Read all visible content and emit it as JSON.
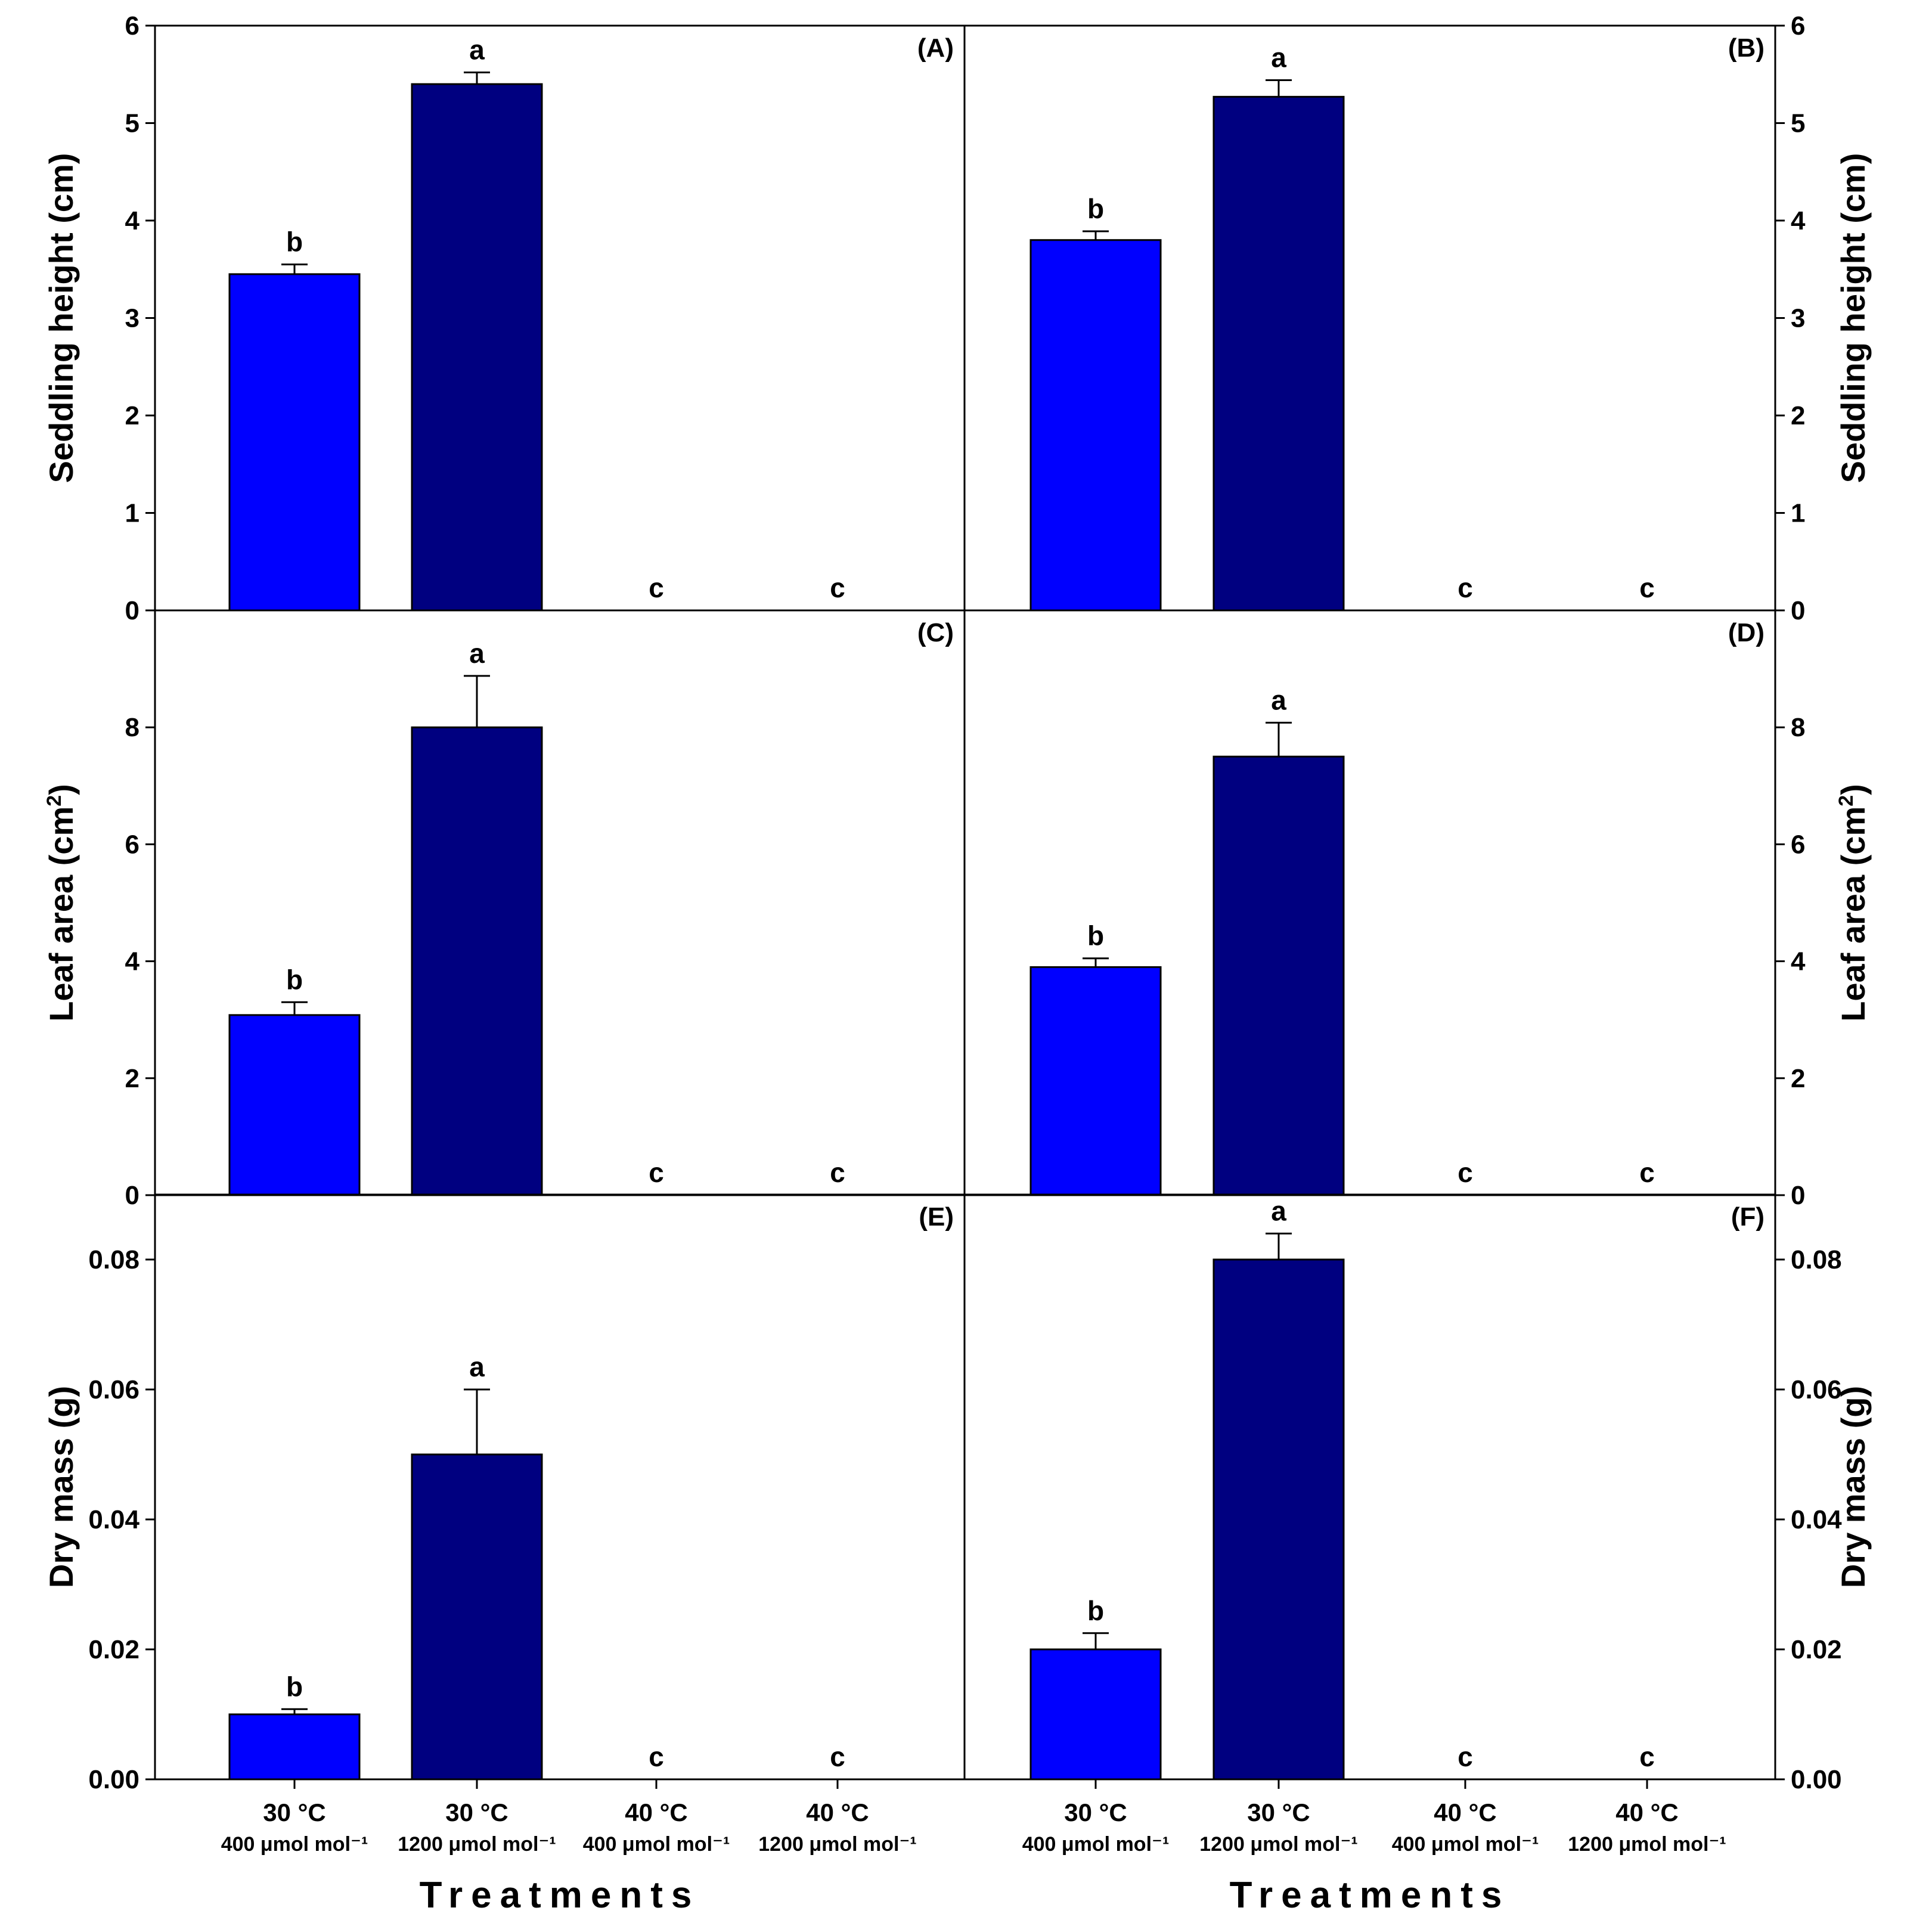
{
  "chart_data": {
    "type": "bar",
    "categories": [
      {
        "line1": "30 °C",
        "line2": "400 μmol mol⁻¹"
      },
      {
        "line1": "30 °C",
        "line2": "1200 μmol mol⁻¹"
      },
      {
        "line1": "40 °C",
        "line2": "400 μmol mol⁻¹"
      },
      {
        "line1": "40 °C",
        "line2": "1200 μmol mol⁻¹"
      }
    ],
    "xlabel": "Treatments",
    "bar_colors": [
      "#0000ff",
      "#000080",
      "#000080",
      "#000080"
    ],
    "panels": [
      {
        "id": "A",
        "label": "(A)",
        "ylabel": "Seddling height (cm)",
        "ylabel_sup": "",
        "ylabel_tail": "",
        "ylim": [
          0,
          6
        ],
        "ticks": [
          "0",
          "1",
          "2",
          "3",
          "4",
          "5",
          "6"
        ],
        "tick_values": [
          0,
          1,
          2,
          3,
          4,
          5,
          6
        ],
        "values": [
          3.45,
          5.4,
          0,
          0
        ],
        "errors": [
          0.1,
          0.12,
          0,
          0
        ],
        "letters": [
          "b",
          "a",
          "c",
          "c"
        ]
      },
      {
        "id": "B",
        "label": "(B)",
        "ylabel": "Seddling height (cm)",
        "ylabel_sup": "",
        "ylabel_tail": "",
        "ylim": [
          0,
          6
        ],
        "ticks": [
          "0",
          "1",
          "2",
          "3",
          "4",
          "5",
          "6"
        ],
        "tick_values": [
          0,
          1,
          2,
          3,
          4,
          5,
          6
        ],
        "values": [
          3.8,
          5.27,
          0,
          0
        ],
        "errors": [
          0.09,
          0.17,
          0,
          0
        ],
        "letters": [
          "b",
          "a",
          "c",
          "c"
        ]
      },
      {
        "id": "C",
        "label": "(C)",
        "ylabel": "Leaf area (cm",
        "ylabel_sup": "2",
        "ylabel_tail": ")",
        "ylim": [
          0,
          10
        ],
        "ticks": [
          "0",
          "2",
          "4",
          "6",
          "8"
        ],
        "tick_values": [
          0,
          2,
          4,
          6,
          8
        ],
        "values": [
          3.08,
          8.0,
          0,
          0
        ],
        "errors": [
          0.22,
          0.88,
          0,
          0
        ],
        "letters": [
          "b",
          "a",
          "c",
          "c"
        ]
      },
      {
        "id": "D",
        "label": "(D)",
        "ylabel": "Leaf area (cm",
        "ylabel_sup": "2",
        "ylabel_tail": ")",
        "ylim": [
          0,
          10
        ],
        "ticks": [
          "0",
          "2",
          "4",
          "6",
          "8"
        ],
        "tick_values": [
          0,
          2,
          4,
          6,
          8
        ],
        "values": [
          3.9,
          7.5,
          0,
          0
        ],
        "errors": [
          0.15,
          0.58,
          0,
          0
        ],
        "letters": [
          "b",
          "a",
          "c",
          "c"
        ]
      },
      {
        "id": "E",
        "label": "(E)",
        "ylabel": "Dry mass (g)",
        "ylabel_sup": "",
        "ylabel_tail": "",
        "ylim": [
          0,
          0.09
        ],
        "ticks": [
          "0.00",
          "0.02",
          "0.04",
          "0.06",
          "0.08"
        ],
        "tick_values": [
          0,
          0.02,
          0.04,
          0.06,
          0.08
        ],
        "values": [
          0.01,
          0.05,
          0,
          0
        ],
        "errors": [
          0.0008,
          0.01,
          0,
          0
        ],
        "letters": [
          "b",
          "a",
          "c",
          "c"
        ]
      },
      {
        "id": "F",
        "label": "(F)",
        "ylabel": "Dry mass (g)",
        "ylabel_sup": "",
        "ylabel_tail": "",
        "ylim": [
          0,
          0.09
        ],
        "ticks": [
          "0.00",
          "0.02",
          "0.04",
          "0.06",
          "0.08"
        ],
        "tick_values": [
          0,
          0.02,
          0.04,
          0.06,
          0.08
        ],
        "values": [
          0.02,
          0.08,
          0,
          0
        ],
        "errors": [
          0.0025,
          0.004,
          0,
          0
        ],
        "letters": [
          "b",
          "a",
          "c",
          "c"
        ]
      }
    ]
  }
}
